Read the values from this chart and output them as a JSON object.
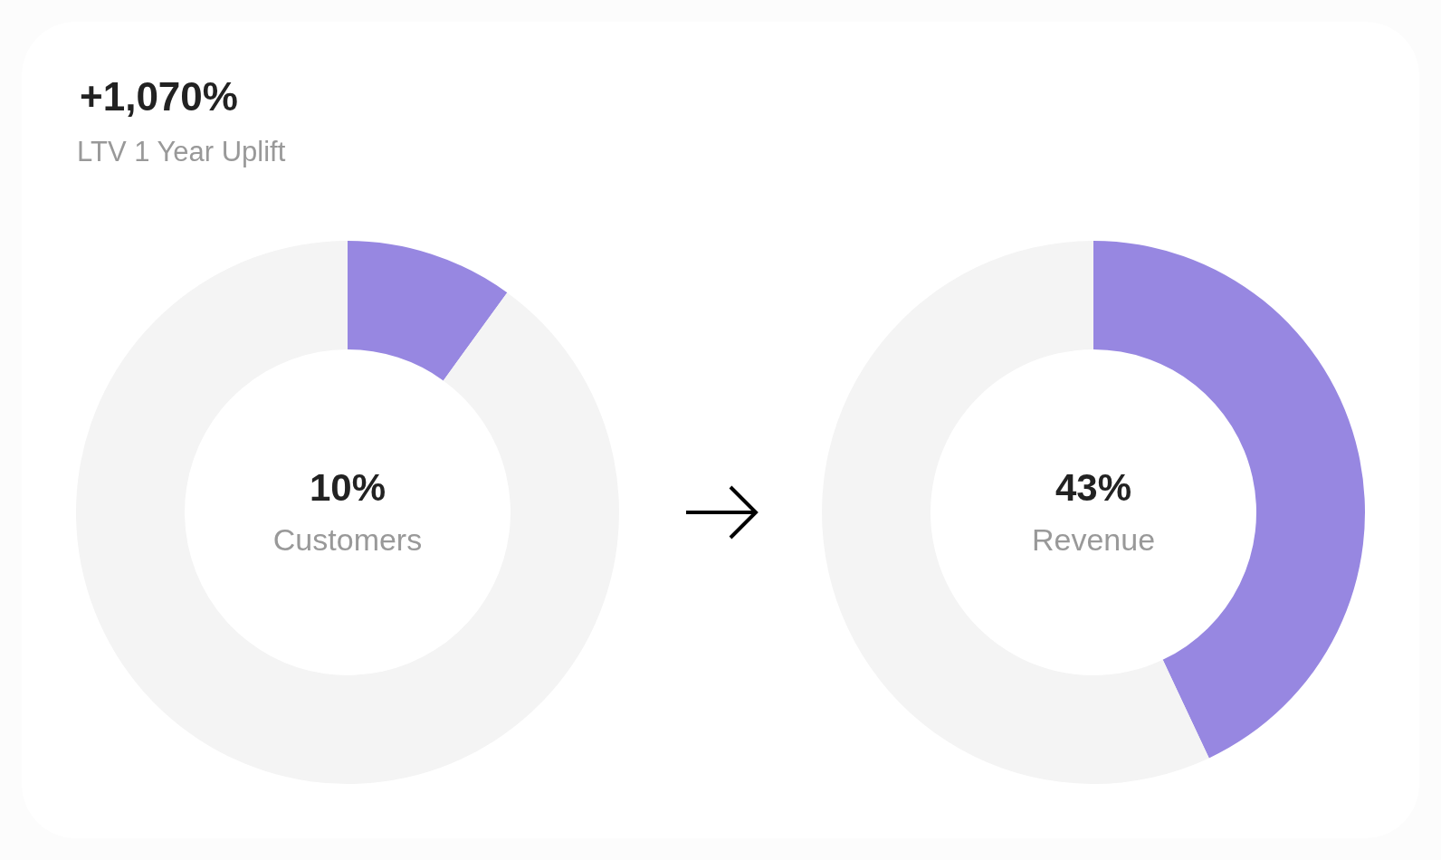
{
  "chart_data": [
    {
      "type": "donut",
      "title": "+1,070%",
      "subtitle": "LTV 1 Year Uplift",
      "categories": [
        "Customers",
        null
      ],
      "values": [
        10,
        90
      ],
      "colors": [
        "#9787e1",
        "#f4f4f4"
      ],
      "value_labels": [
        "10%",
        null
      ]
    },
    {
      "type": "donut",
      "categories": [
        "Revenue",
        null
      ],
      "values": [
        43,
        57
      ],
      "colors": [
        "#9787e1",
        "#f4f4f4"
      ],
      "value_labels": [
        "43%",
        null
      ]
    }
  ]
}
